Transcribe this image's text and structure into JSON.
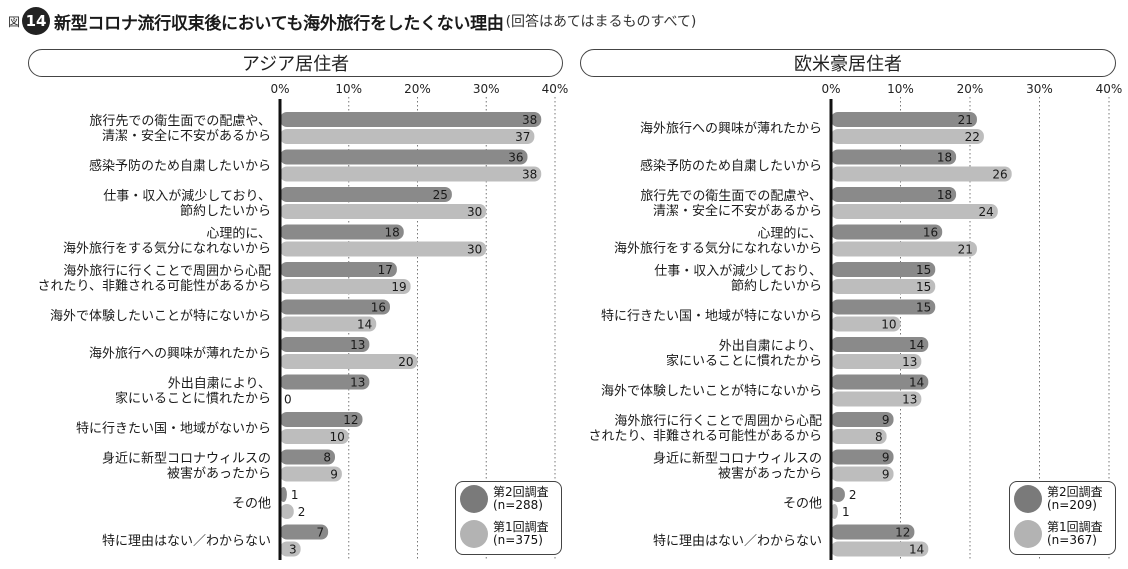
{
  "figure": {
    "prefix": "図",
    "number": "14",
    "title": "新型コロナ流行収束後においても海外旅行をしたくない理由",
    "subtitle": "(回答はあてはまるものすべて)"
  },
  "colors": {
    "second_survey": "#8a8a8a",
    "first_survey": "#bdbdbd"
  },
  "chart_data": [
    {
      "type": "bar",
      "orientation": "horizontal",
      "title": "アジア居住者",
      "xlim": [
        0,
        40
      ],
      "xticks": [
        "0%",
        "10%",
        "20%",
        "30%",
        "40%"
      ],
      "categories": [
        "旅行先での衛生面での配慮や、\n清潔・安全に不安があるから",
        "感染予防のため自粛したいから",
        "仕事・収入が減少しており、\n節約したいから",
        "心理的に、\n海外旅行をする気分になれないから",
        "海外旅行に行くことで周囲から心配\nされたり、非難される可能性があるから",
        "海外で体験したいことが特にないから",
        "海外旅行への興味が薄れたから",
        "外出自粛により、\n家にいることに慣れたから",
        "特に行きたい国・地域がないから",
        "身近に新型コロナウィルスの\n被害があったから",
        "その他",
        "特に理由はない／わからない"
      ],
      "series": [
        {
          "name": "第2回調査",
          "n": "(n=288)",
          "values": [
            38,
            36,
            25,
            18,
            17,
            16,
            13,
            13,
            12,
            8,
            1,
            7
          ]
        },
        {
          "name": "第1回調査",
          "n": "(n=375)",
          "values": [
            37,
            38,
            30,
            30,
            19,
            14,
            20,
            0,
            10,
            9,
            2,
            3
          ]
        }
      ]
    },
    {
      "type": "bar",
      "orientation": "horizontal",
      "title": "欧米豪居住者",
      "xlim": [
        0,
        40
      ],
      "xticks": [
        "0%",
        "10%",
        "20%",
        "30%",
        "40%"
      ],
      "categories": [
        "海外旅行への興味が薄れたから",
        "感染予防のため自粛したいから",
        "旅行先での衛生面での配慮や、\n清潔・安全に不安があるから",
        "心理的に、\n海外旅行をする気分になれないから",
        "仕事・収入が減少しており、\n節約したいから",
        "特に行きたい国・地域が特にないから",
        "外出自粛により、\n家にいることに慣れたから",
        "海外で体験したいことが特にないから",
        "海外旅行に行くことで周囲から心配\nされたり、非難される可能性があるから",
        "身近に新型コロナウィルスの\n被害があったから",
        "その他",
        "特に理由はない／わからない"
      ],
      "series": [
        {
          "name": "第2回調査",
          "n": "(n=209)",
          "values": [
            21,
            18,
            18,
            16,
            15,
            15,
            14,
            14,
            9,
            9,
            2,
            12
          ]
        },
        {
          "name": "第1回調査",
          "n": "(n=367)",
          "values": [
            22,
            26,
            24,
            21,
            15,
            10,
            13,
            13,
            8,
            9,
            1,
            14
          ]
        }
      ]
    }
  ]
}
